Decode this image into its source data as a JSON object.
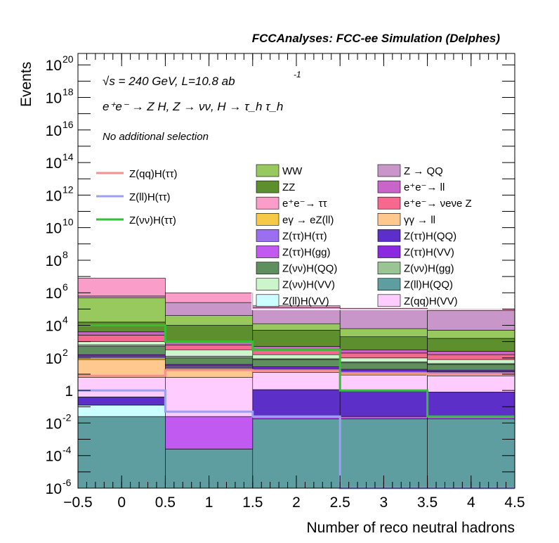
{
  "header_title": "FCCAnalyses: FCC-ee Simulation (Delphes)",
  "annotations": {
    "line1": "√s = 240 GeV, L=10.8 ab",
    "line1_sup": "-1",
    "line2": "e⁺e⁻ → Z H, Z → νν, H → τ_h τ_h",
    "line3": "No additional selection"
  },
  "chart_data": {
    "type": "histogram-stacked-log",
    "title": "FCCAnalyses: FCC-ee Simulation (Delphes)",
    "xlabel": "Number of reco neutral hadrons",
    "ylabel": "Events",
    "xlim": [
      -0.5,
      4.5
    ],
    "ylim_log10": [
      -6,
      20.7
    ],
    "log_y": true,
    "bin_edges": [
      -0.5,
      0.5,
      1.5,
      2.5,
      3.5,
      4.5
    ],
    "x_ticks": [
      {
        "v": -0.5,
        "label": "−0.5"
      },
      {
        "v": 0,
        "label": "0"
      },
      {
        "v": 0.5,
        "label": "0.5"
      },
      {
        "v": 1,
        "label": "1"
      },
      {
        "v": 1.5,
        "label": "1.5"
      },
      {
        "v": 2,
        "label": "2"
      },
      {
        "v": 2.5,
        "label": "2.5"
      },
      {
        "v": 3,
        "label": "3"
      },
      {
        "v": 3.5,
        "label": "3.5"
      },
      {
        "v": 4,
        "label": "4"
      },
      {
        "v": 4.5,
        "label": "4.5"
      }
    ],
    "y_ticks": [
      {
        "e": -6,
        "base": "10",
        "exp": "-6"
      },
      {
        "e": -4,
        "base": "10",
        "exp": "-4"
      },
      {
        "e": -2,
        "base": "10",
        "exp": "-2"
      },
      {
        "e": 0,
        "base": "1",
        "exp": ""
      },
      {
        "e": 2,
        "base": "10",
        "exp": "2"
      },
      {
        "e": 4,
        "base": "10",
        "exp": "4"
      },
      {
        "e": 6,
        "base": "10",
        "exp": "6"
      },
      {
        "e": 8,
        "base": "10",
        "exp": "8"
      },
      {
        "e": 10,
        "base": "10",
        "exp": "10"
      },
      {
        "e": 12,
        "base": "10",
        "exp": "12"
      },
      {
        "e": 14,
        "base": "10",
        "exp": "14"
      },
      {
        "e": 16,
        "base": "10",
        "exp": "16"
      },
      {
        "e": 18,
        "base": "10",
        "exp": "18"
      },
      {
        "e": 20,
        "base": "10",
        "exp": "20"
      }
    ],
    "stack_log10_boundaries": [
      {
        "name": "Z(ll)H(QQ)",
        "color": "#5f9ea0",
        "top": [
          -1.6,
          -3.6,
          -1.75,
          -1.75,
          -1.75
        ]
      },
      {
        "name": "Z(ττ)H(gg)",
        "color": "#c15af0",
        "top": [
          -1.6,
          -1.6,
          -1.6,
          -1.6,
          -1.6
        ]
      },
      {
        "name": "Z(ll)H(VV)",
        "color": "#ccffff",
        "top": [
          -0.9,
          -1.6,
          -1.6,
          -1.6,
          -1.6
        ]
      },
      {
        "name": "Z(ττ)H(QQ)",
        "color": "#5c2fc8",
        "top": [
          -0.4,
          -1.6,
          0.05,
          0.0,
          -0.1
        ]
      },
      {
        "name": "Z(qq)H(VV)",
        "color": "#ffccff",
        "top": [
          0.8,
          0.8,
          1.1,
          0.95,
          0.9
        ]
      },
      {
        "name": "γγ → ll",
        "color": "#fec88e",
        "top": [
          1.9,
          1.35,
          1.2,
          1.05,
          1.0
        ]
      },
      {
        "name": "eγ → eZ(ll)",
        "color": "#f7c948",
        "top": [
          2.0,
          1.4,
          1.25,
          1.1,
          1.05
        ]
      },
      {
        "name": "Z(ττ)H(ττ)",
        "color": "#9a6ff2",
        "top": [
          2.1,
          1.5,
          1.35,
          1.2,
          1.15
        ]
      },
      {
        "name": "Z(ττ)H(VV)",
        "color": "#8a2be2",
        "top": [
          2.2,
          1.6,
          1.45,
          1.3,
          1.25
        ]
      },
      {
        "name": "Z(νν)H(QQ)",
        "color": "#5f8f5f",
        "top": [
          2.7,
          2.0,
          1.9,
          1.7,
          1.6
        ]
      },
      {
        "name": "Z(νν)H(gg)",
        "color": "#98c593",
        "top": [
          2.8,
          2.1,
          1.95,
          1.75,
          1.65
        ]
      },
      {
        "name": "Z(νν)H(VV)",
        "color": "#ccf5cc",
        "top": [
          3.0,
          2.5,
          2.2,
          2.0,
          1.9
        ]
      },
      {
        "name": "e⁺e⁻ → νeνe Z",
        "color": "#f7688e",
        "top": [
          3.4,
          2.8,
          2.5,
          2.3,
          2.2
        ]
      },
      {
        "name": "e⁺e⁻ → ll",
        "color": "#c964c9",
        "top": [
          3.6,
          3.0,
          2.7,
          2.5,
          2.4
        ]
      },
      {
        "name": "ZZ",
        "color": "#5d8f2e",
        "top": [
          4.2,
          4.0,
          3.7,
          3.3,
          3.2
        ]
      },
      {
        "name": "WW",
        "color": "#98c95e",
        "top": [
          5.7,
          4.6,
          4.1,
          3.8,
          3.7
        ]
      },
      {
        "name": "Z → QQ",
        "color": "#c996c9",
        "top": [
          5.8,
          5.4,
          5.1,
          5.0,
          4.9
        ]
      },
      {
        "name": "e⁺e⁻ → ττ",
        "color": "#fb9dc9",
        "top": [
          6.9,
          6.0,
          5.2,
          5.05,
          5.0
        ]
      }
    ],
    "signal_series": [
      {
        "name": "Z(qq)H(ττ)",
        "color": "#f79090",
        "log10": [
          0.9,
          1.25,
          1.2,
          1.05,
          1.0
        ]
      },
      {
        "name": "Z(ll)H(ττ)",
        "color": "#9aa1f0",
        "log10": [
          0.0,
          -1.3,
          -1.6,
          -6.0,
          -6.0
        ]
      },
      {
        "name": "Z(νν)H(ττ)",
        "color": "#33c033",
        "log10": [
          4.0,
          3.0,
          2.5,
          0.0,
          -1.6
        ]
      }
    ],
    "legend_signals": [
      "Z(qq)H(ττ)",
      "Z(ll)H(ττ)",
      "Z(νν)H(ττ)"
    ],
    "legend_backgrounds_col1": [
      "WW",
      "ZZ",
      "e⁺e⁻→ ττ",
      "eγ → eZ(ll)",
      "Z(ττ)H(ττ)",
      "Z(ττ)H(gg)",
      "Z(νν)H(QQ)",
      "Z(νν)H(VV)",
      "Z(ll)H(VV)"
    ],
    "legend_backgrounds_col2": [
      "Z → QQ",
      "e⁺e⁻→ ll",
      "e⁺e⁻→ νeνe Z",
      "γγ → ll",
      "Z(ττ)H(QQ)",
      "Z(ττ)H(VV)",
      "Z(νν)H(gg)",
      "Z(ll)H(QQ)",
      "Z(qq)H(VV)"
    ]
  },
  "legend_colors": {
    "WW": "#98c95e",
    "ZZ": "#5d8f2e",
    "e⁺e⁻→ ττ": "#fb9dc9",
    "eγ → eZ(ll)": "#f7c948",
    "Z(ττ)H(ττ)": "#9a6ff2",
    "Z(ττ)H(gg)": "#c15af0",
    "Z(νν)H(QQ)": "#5f8f5f",
    "Z(νν)H(VV)": "#ccf5cc",
    "Z(ll)H(VV)": "#ccffff",
    "Z → QQ": "#c996c9",
    "e⁺e⁻→ ll": "#c964c9",
    "e⁺e⁻→ νeνe Z": "#f7688e",
    "γγ → ll": "#fec88e",
    "Z(ττ)H(QQ)": "#5c2fc8",
    "Z(ττ)H(VV)": "#8a2be2",
    "Z(νν)H(gg)": "#98c593",
    "Z(ll)H(QQ)": "#5f9ea0",
    "Z(qq)H(VV)": "#ffccff"
  }
}
